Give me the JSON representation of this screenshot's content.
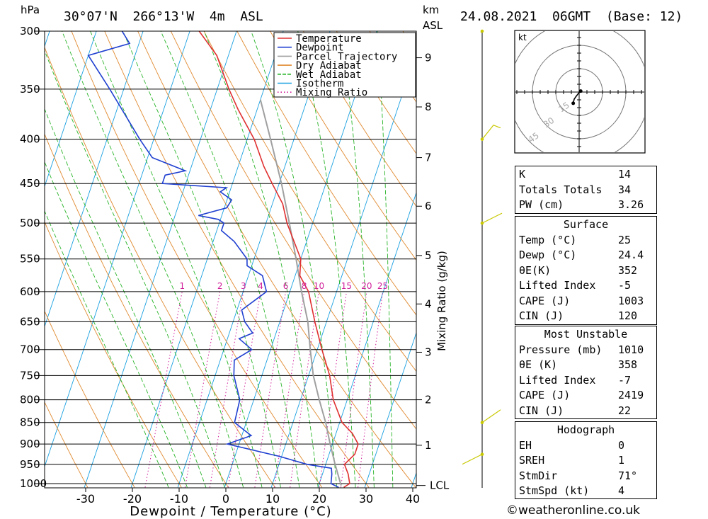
{
  "header": {
    "location": "30°07'N  266°13'W  4m  ASL",
    "datetime": "24.08.2021  06GMT  (Base: 12)",
    "pressure_unit": "hPa",
    "height_unit_top": "km",
    "height_unit_bottom": "ASL"
  },
  "chart_data": [
    {
      "type": "line",
      "subtype": "skew-T log-P diagram",
      "xlabel": "Dewpoint / Temperature (°C)",
      "ylabel": "hPa",
      "x_ticks": [
        -30,
        -20,
        -10,
        0,
        10,
        20,
        30,
        40
      ],
      "xlim": [
        -40,
        40
      ],
      "y_ticks": [
        300,
        350,
        400,
        450,
        500,
        550,
        600,
        650,
        700,
        750,
        800,
        850,
        900,
        950,
        1000
      ],
      "ylim": [
        1010,
        300
      ],
      "y_scale": "log",
      "km_ticks": [
        {
          "km": "1",
          "p": 903
        },
        {
          "km": "2",
          "p": 800
        },
        {
          "km": "3",
          "p": 705
        },
        {
          "km": "4",
          "p": 620
        },
        {
          "km": "5",
          "p": 545
        },
        {
          "km": "6",
          "p": 478
        },
        {
          "km": "7",
          "p": 420
        },
        {
          "km": "8",
          "p": 367
        },
        {
          "km": "9",
          "p": 322
        }
      ],
      "lcl_label": "LCL",
      "lcl_pressure": 1005,
      "mixing_ratio_axis_label": "Mixing Ratio (g/kg)",
      "mixing_ratio_labels": [
        "1",
        "2",
        "3",
        "4",
        "6",
        "8",
        "10",
        "15",
        "20",
        "25"
      ],
      "mixing_ratio_values": [
        1,
        2,
        3,
        4,
        6,
        8,
        10,
        15,
        20,
        25
      ],
      "legend": [
        "Temperature",
        "Dewpoint",
        "Parcel Trajectory",
        "Dry Adiabat",
        "Wet Adiabat",
        "Isotherm",
        "Mixing Ratio"
      ],
      "legend_placement": "top-right",
      "colors": {
        "Temperature": "#e03030",
        "Dewpoint": "#2040d0",
        "Parcel Trajectory": "#a0a0a0",
        "Dry Adiabat": "#e08a30",
        "Wet Adiabat": "#28b428",
        "Isotherm": "#1aa0e0",
        "Mixing Ratio": "#d0209a"
      },
      "series": [
        {
          "name": "Temperature",
          "points": [
            {
              "p": 1010,
              "t": 25.5
            },
            {
              "p": 1000,
              "t": 26.5
            },
            {
              "p": 975,
              "t": 25.5
            },
            {
              "p": 950,
              "t": 24.0
            },
            {
              "p": 925,
              "t": 25.5
            },
            {
              "p": 900,
              "t": 25.5
            },
            {
              "p": 875,
              "t": 23.5
            },
            {
              "p": 850,
              "t": 20.5
            },
            {
              "p": 800,
              "t": 17.0
            },
            {
              "p": 750,
              "t": 14.5
            },
            {
              "p": 700,
              "t": 11.0
            },
            {
              "p": 650,
              "t": 7.5
            },
            {
              "p": 600,
              "t": 4.0
            },
            {
              "p": 575,
              "t": 1.0
            },
            {
              "p": 550,
              "t": 0.0
            },
            {
              "p": 500,
              "t": -5.5
            },
            {
              "p": 475,
              "t": -7.8
            },
            {
              "p": 450,
              "t": -11.5
            },
            {
              "p": 430,
              "t": -14.5
            },
            {
              "p": 400,
              "t": -18.5
            },
            {
              "p": 370,
              "t": -24.0
            },
            {
              "p": 350,
              "t": -27.5
            },
            {
              "p": 320,
              "t": -32.5
            },
            {
              "p": 300,
              "t": -38.0
            }
          ]
        },
        {
          "name": "Dewpoint",
          "points": [
            {
              "p": 1010,
              "t": 24.4
            },
            {
              "p": 1000,
              "t": 22.5
            },
            {
              "p": 975,
              "t": 22.0
            },
            {
              "p": 960,
              "t": 21.5
            },
            {
              "p": 950,
              "t": 16.0
            },
            {
              "p": 930,
              "t": 9.5
            },
            {
              "p": 900,
              "t": -2.5
            },
            {
              "p": 880,
              "t": 2.0
            },
            {
              "p": 850,
              "t": -2.5
            },
            {
              "p": 800,
              "t": -3.0
            },
            {
              "p": 750,
              "t": -6.0
            },
            {
              "p": 720,
              "t": -7.0
            },
            {
              "p": 700,
              "t": -4.0
            },
            {
              "p": 680,
              "t": -7.5
            },
            {
              "p": 670,
              "t": -5.0
            },
            {
              "p": 650,
              "t": -7.5
            },
            {
              "p": 630,
              "t": -9.0
            },
            {
              "p": 600,
              "t": -5.0
            },
            {
              "p": 575,
              "t": -7.0
            },
            {
              "p": 560,
              "t": -11.0
            },
            {
              "p": 550,
              "t": -11.5
            },
            {
              "p": 525,
              "t": -15.5
            },
            {
              "p": 510,
              "t": -19.0
            },
            {
              "p": 500,
              "t": -19.0
            },
            {
              "p": 495,
              "t": -20.5
            },
            {
              "p": 490,
              "t": -25.0
            },
            {
              "p": 480,
              "t": -19.5
            },
            {
              "p": 470,
              "t": -19.0
            },
            {
              "p": 460,
              "t": -22.0
            },
            {
              "p": 455,
              "t": -21.0
            },
            {
              "p": 450,
              "t": -35.0
            },
            {
              "p": 440,
              "t": -35.0
            },
            {
              "p": 435,
              "t": -31.0
            },
            {
              "p": 420,
              "t": -39.0
            },
            {
              "p": 400,
              "t": -43.0
            },
            {
              "p": 350,
              "t": -53.0
            },
            {
              "p": 320,
              "t": -60.0
            },
            {
              "p": 310,
              "t": -52.0
            },
            {
              "p": 300,
              "t": -54.5
            }
          ]
        },
        {
          "name": "Parcel Trajectory",
          "points": [
            {
              "p": 1005,
              "t": 24.8
            },
            {
              "p": 950,
              "t": 22.0
            },
            {
              "p": 900,
              "t": 19.5
            },
            {
              "p": 850,
              "t": 17.0
            },
            {
              "p": 800,
              "t": 14.0
            },
            {
              "p": 750,
              "t": 11.0
            },
            {
              "p": 700,
              "t": 8.5
            },
            {
              "p": 650,
              "t": 6.0
            },
            {
              "p": 600,
              "t": 2.5
            },
            {
              "p": 550,
              "t": -1.0
            },
            {
              "p": 500,
              "t": -5.0
            },
            {
              "p": 450,
              "t": -9.5
            },
            {
              "p": 400,
              "t": -15.0
            },
            {
              "p": 360,
              "t": -20.0
            }
          ]
        }
      ]
    },
    {
      "type": "scatter",
      "subtype": "hodograph",
      "unit_label": "kt",
      "ring_labels": [
        "15",
        "30",
        "45"
      ],
      "ring_values": [
        15,
        30,
        45
      ],
      "points": [
        {
          "u": 0.5,
          "v": 0.3
        },
        {
          "u": 0.3,
          "v": 0.1
        },
        {
          "u": -0.2,
          "v": -0.4
        },
        {
          "u": -1.0,
          "v": -1.4
        },
        {
          "u": -1.6,
          "v": -2.3
        },
        {
          "u": -1.8,
          "v": -3.1
        },
        {
          "u": -1.9,
          "v": -3.6
        }
      ]
    }
  ],
  "indices": {
    "block1": [
      {
        "label": "K",
        "value": "14"
      },
      {
        "label": "Totals Totals",
        "value": "34"
      },
      {
        "label": "PW (cm)",
        "value": "3.26"
      }
    ],
    "surface_title": "Surface",
    "surface": [
      {
        "label": "Temp (°C)",
        "value": "25"
      },
      {
        "label": "Dewp (°C)",
        "value": "24.4"
      },
      {
        "label": "θE(K)",
        "value": "352"
      },
      {
        "label": "Lifted Index",
        "value": "-5"
      },
      {
        "label": "CAPE (J)",
        "value": "1003"
      },
      {
        "label": "CIN (J)",
        "value": "120"
      }
    ],
    "most_unstable_title": "Most Unstable",
    "most_unstable": [
      {
        "label": "Pressure (mb)",
        "value": "1010"
      },
      {
        "label": "θE (K)",
        "value": "358"
      },
      {
        "label": "Lifted Index",
        "value": "-7"
      },
      {
        "label": "CAPE (J)",
        "value": "2419"
      },
      {
        "label": "CIN (J)",
        "value": "22"
      }
    ],
    "hodograph_title": "Hodograph",
    "hodograph": [
      {
        "label": "EH",
        "value": "0"
      },
      {
        "label": "SREH",
        "value": "1"
      },
      {
        "label": "StmDir",
        "value": "71°"
      },
      {
        "label": "StmSpd (kt)",
        "value": "4"
      }
    ]
  },
  "wind_barbs": [
    {
      "p": 300
    },
    {
      "p": 400
    },
    {
      "p": 500
    },
    {
      "p": 850
    },
    {
      "p": 925
    }
  ],
  "credit": "©weatheronline.co.uk"
}
